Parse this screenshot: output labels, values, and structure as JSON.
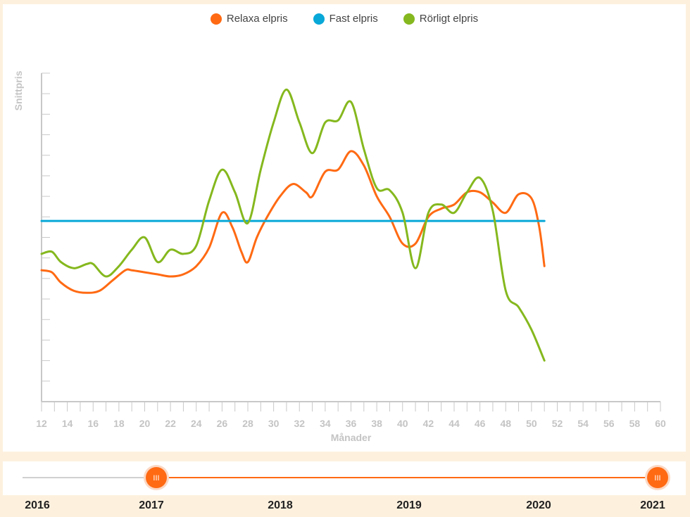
{
  "legend": [
    {
      "label": "Relaxa elpris",
      "color": "#ff6a13"
    },
    {
      "label": "Fast elpris",
      "color": "#08a8d8"
    },
    {
      "label": "Rörligt elpris",
      "color": "#85b81e"
    }
  ],
  "slider": {
    "years": [
      "2016",
      "2017",
      "2018",
      "2019",
      "2020",
      "2021"
    ],
    "range_start": "2017",
    "range_end": "2021",
    "track_color": "#d0d0d0",
    "range_color": "#ff6a13",
    "handle_glyph": "III"
  },
  "chart_data": {
    "type": "line",
    "xlabel": "Månader",
    "ylabel": "Snittpris",
    "xlim": [
      12,
      60
    ],
    "ylim": [
      0,
      16
    ],
    "grid": false,
    "legend_position": "top-center",
    "x_tick_labels": [
      "12",
      "14",
      "16",
      "18",
      "20",
      "22",
      "24",
      "26",
      "28",
      "30",
      "32",
      "34",
      "36",
      "38",
      "40",
      "42",
      "44",
      "46",
      "48",
      "50",
      "52",
      "54",
      "56",
      "58",
      "60"
    ],
    "series": [
      {
        "name": "Relaxa elpris",
        "color": "#ff6a13",
        "x": [
          12,
          12.8,
          13.5,
          14.5,
          15.5,
          16.5,
          17.5,
          18.5,
          19,
          20,
          21,
          22,
          23,
          24,
          25,
          26,
          26.8,
          27.5,
          28,
          28.7,
          29.5,
          30.5,
          31.5,
          32.5,
          33,
          34,
          35,
          36,
          37,
          38,
          39,
          40,
          41,
          42,
          43,
          44,
          45,
          46,
          47,
          48,
          49,
          50,
          50.6,
          51
        ],
        "y": [
          6.4,
          6.3,
          5.8,
          5.4,
          5.3,
          5.4,
          5.9,
          6.4,
          6.4,
          6.3,
          6.2,
          6.1,
          6.2,
          6.6,
          7.5,
          9.2,
          8.5,
          7.3,
          6.8,
          8.0,
          9.0,
          10.0,
          10.6,
          10.2,
          10.0,
          11.2,
          11.3,
          12.2,
          11.5,
          10.0,
          9.0,
          7.7,
          7.7,
          9.0,
          9.4,
          9.6,
          10.2,
          10.2,
          9.7,
          9.2,
          10.1,
          9.9,
          8.5,
          6.6
        ],
        "values_note": "estimated"
      },
      {
        "name": "Fast elpris",
        "color": "#08a8d8",
        "x": [
          12,
          51
        ],
        "y": [
          8.8,
          8.8
        ]
      },
      {
        "name": "Rörligt elpris",
        "color": "#85b81e",
        "x": [
          12,
          12.8,
          13.5,
          14.5,
          15.5,
          16,
          17,
          18,
          19,
          20,
          21,
          22,
          23,
          24,
          25,
          26,
          27,
          28,
          29,
          30,
          31,
          32,
          33,
          34,
          35,
          36,
          37,
          38,
          39,
          40,
          41,
          42,
          43,
          44,
          45,
          46,
          47,
          48,
          49,
          50,
          51
        ],
        "y": [
          7.2,
          7.3,
          6.8,
          6.5,
          6.7,
          6.7,
          6.1,
          6.6,
          7.4,
          8.0,
          6.8,
          7.4,
          7.2,
          7.6,
          9.8,
          11.3,
          10.2,
          8.7,
          11.3,
          13.6,
          15.2,
          13.6,
          12.1,
          13.6,
          13.7,
          14.6,
          12.3,
          10.4,
          10.3,
          9.2,
          6.5,
          9.2,
          9.6,
          9.2,
          10.2,
          10.9,
          9.3,
          5.4,
          4.6,
          3.5,
          2.0
        ]
      }
    ]
  }
}
